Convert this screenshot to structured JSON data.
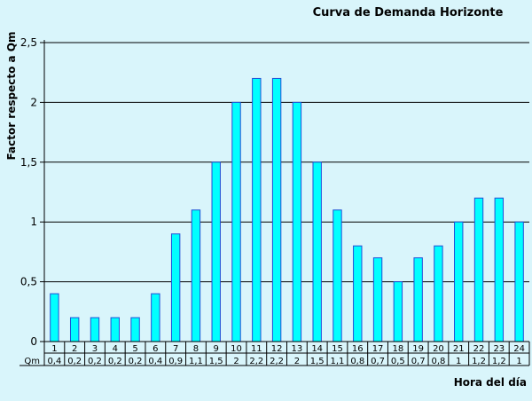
{
  "chart_data": {
    "type": "bar",
    "title": "Curva de Demanda Horizonte",
    "xlabel": "Hora del día",
    "ylabel": "Factor respecto a Qm",
    "ylim": [
      0,
      2.5
    ],
    "yticks": [
      {
        "value": 0,
        "label": "0"
      },
      {
        "value": 0.5,
        "label": "0,5"
      },
      {
        "value": 1,
        "label": "1"
      },
      {
        "value": 1.5,
        "label": "1,5"
      },
      {
        "value": 2,
        "label": "2"
      },
      {
        "value": 2.5,
        "label": "2,5"
      }
    ],
    "grid": true,
    "categories": [
      "1",
      "2",
      "3",
      "4",
      "5",
      "6",
      "7",
      "8",
      "9",
      "10",
      "11",
      "12",
      "13",
      "14",
      "15",
      "16",
      "17",
      "18",
      "19",
      "20",
      "21",
      "22",
      "23",
      "24"
    ],
    "table_row_label": "Qm",
    "table_values": [
      "0,4",
      "0,2",
      "0,2",
      "0,2",
      "0,2",
      "0,4",
      "0,9",
      "1,1",
      "1,5",
      "2",
      "2,2",
      "2,2",
      "2",
      "1,5",
      "1,1",
      "0,8",
      "0,7",
      "0,5",
      "0,7",
      "0,8",
      "1",
      "1,2",
      "1,2",
      "1"
    ],
    "values": [
      0.4,
      0.2,
      0.2,
      0.2,
      0.2,
      0.4,
      0.9,
      1.1,
      1.5,
      2,
      2.2,
      2.2,
      2,
      1.5,
      1.1,
      0.8,
      0.7,
      0.5,
      0.7,
      0.8,
      1,
      1.2,
      1.2,
      1
    ],
    "bar_color": "#00ffff",
    "bar_stroke": "#1f4fd6"
  }
}
